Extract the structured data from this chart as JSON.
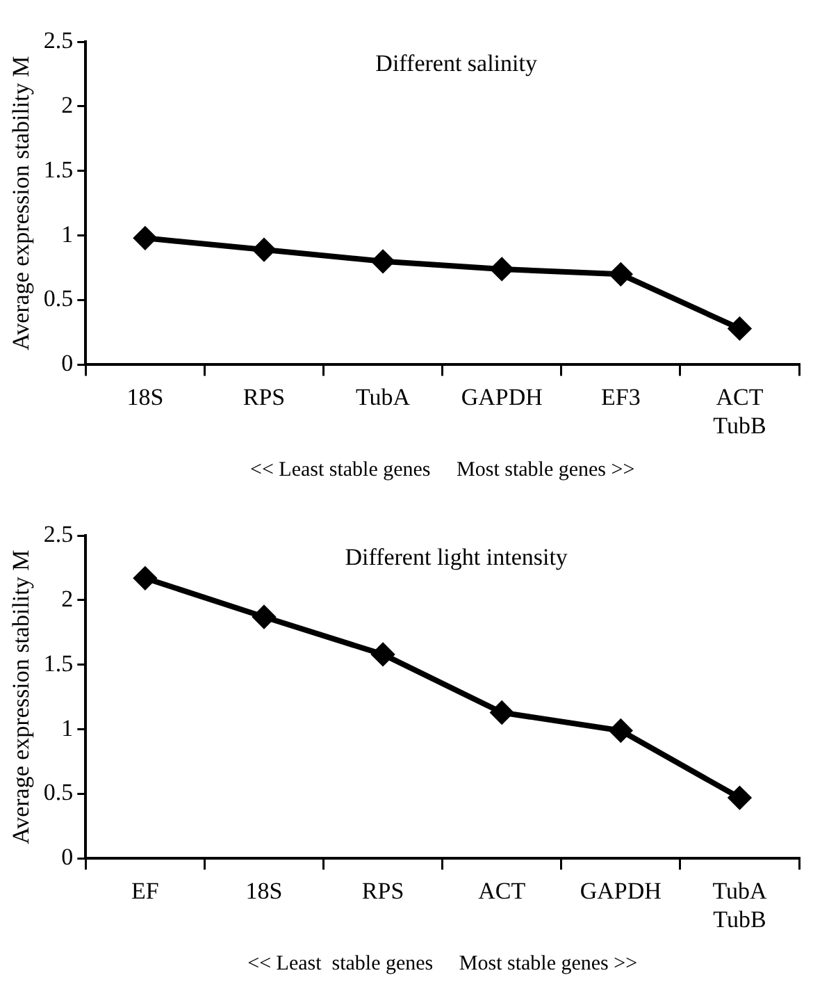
{
  "chart_data": [
    {
      "type": "line",
      "title": "Different salinity",
      "xlabel": "<< Least stable genes     Most stable genes >>",
      "ylabel": "Average expression stability M",
      "categories": [
        "18S",
        "RPS",
        "TubA",
        "GAPDH",
        "EF3",
        "ACT\nTubB"
      ],
      "series": [
        {
          "color": "#000000",
          "values": [
            0.98,
            0.89,
            0.8,
            0.74,
            0.7,
            0.28
          ]
        }
      ],
      "ylim": [
        0,
        2.5
      ],
      "yticks": [
        0,
        0.5,
        1,
        1.5,
        2,
        2.5
      ],
      "grid": false,
      "legend": false,
      "marker": "diamond",
      "line_style": "solid"
    },
    {
      "type": "line",
      "title": "Different light intensity",
      "xlabel": "<< Least  stable genes     Most stable genes >>",
      "ylabel": "Average expression stability M",
      "categories": [
        "EF",
        "18S",
        "RPS",
        "ACT",
        "GAPDH",
        "TubA\nTubB"
      ],
      "series": [
        {
          "color": "#000000",
          "values": [
            2.17,
            1.87,
            1.58,
            1.13,
            0.99,
            0.47
          ]
        }
      ],
      "ylim": [
        0,
        2.5
      ],
      "yticks": [
        0,
        0.5,
        1,
        1.5,
        2,
        2.5
      ],
      "grid": false,
      "legend": false,
      "marker": "diamond",
      "line_style": "solid"
    }
  ]
}
